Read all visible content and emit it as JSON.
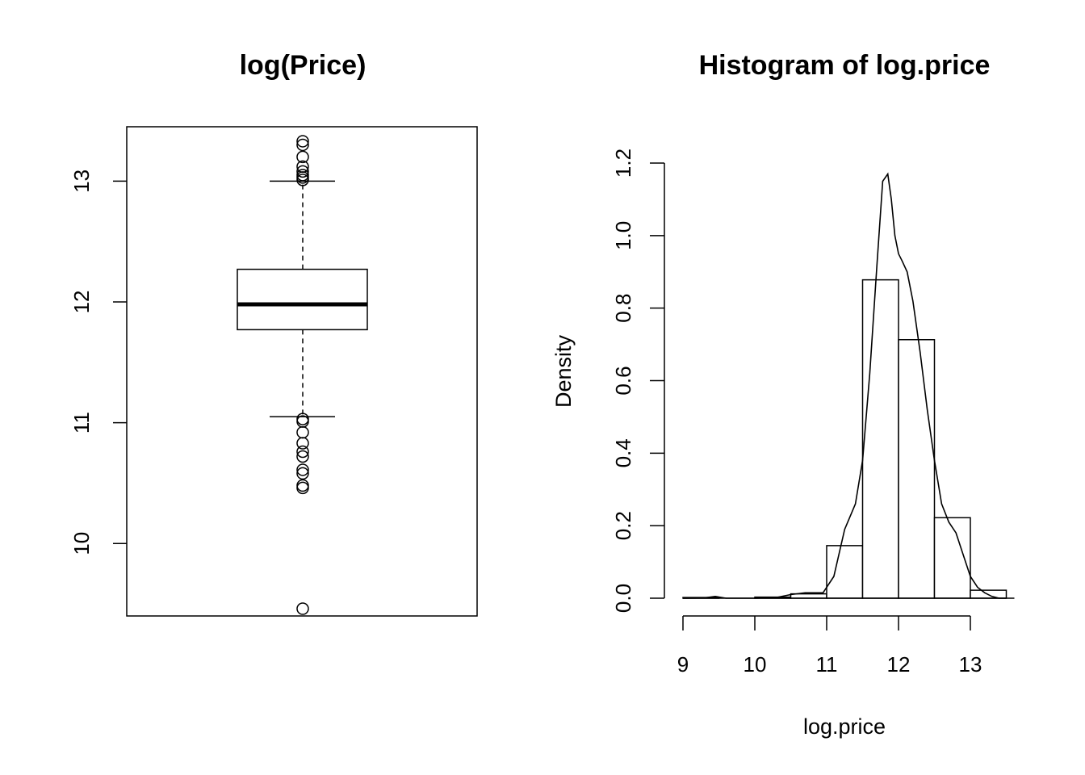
{
  "chart_data": [
    {
      "type": "boxplot",
      "title": "log(Price)",
      "xlabel": "",
      "ylabel": "",
      "ylim": [
        9.4,
        13.45
      ],
      "yticks": [
        10,
        11,
        12,
        13
      ],
      "grid": false,
      "stats": {
        "lower_whisker": 11.05,
        "q1": 11.77,
        "median": 11.98,
        "q3": 12.27,
        "upper_whisker": 13.0
      },
      "outliers": [
        13.33,
        13.3,
        13.2,
        13.12,
        13.08,
        13.05,
        13.03,
        13.01,
        11.03,
        11.01,
        10.92,
        10.83,
        10.76,
        10.72,
        10.61,
        10.58,
        10.48,
        10.46,
        9.46
      ]
    },
    {
      "type": "histogram",
      "title": "Histogram of log.price",
      "xlabel": "log.price",
      "ylabel": "Density",
      "xlim": [
        9,
        13.5
      ],
      "ylim": [
        0,
        1.2
      ],
      "xticks": [
        9,
        10,
        11,
        12,
        13
      ],
      "yticks": [
        0.0,
        0.2,
        0.4,
        0.6,
        0.8,
        1.0,
        1.2
      ],
      "ytick_labels": [
        "0.0",
        "0.2",
        "0.4",
        "0.6",
        "0.8",
        "1.0",
        "1.2"
      ],
      "grid": false,
      "bins": [
        {
          "x0": 9.0,
          "x1": 9.5,
          "density": 0.002
        },
        {
          "x0": 9.5,
          "x1": 10.0,
          "density": 0.0
        },
        {
          "x0": 10.0,
          "x1": 10.5,
          "density": 0.003
        },
        {
          "x0": 10.5,
          "x1": 11.0,
          "density": 0.012
        },
        {
          "x0": 11.0,
          "x1": 11.5,
          "density": 0.145
        },
        {
          "x0": 11.5,
          "x1": 12.0,
          "density": 0.878
        },
        {
          "x0": 12.0,
          "x1": 12.5,
          "density": 0.713
        },
        {
          "x0": 12.5,
          "x1": 13.0,
          "density": 0.222
        },
        {
          "x0": 13.0,
          "x1": 13.5,
          "density": 0.022
        }
      ],
      "density_curve": {
        "x": [
          9.0,
          9.3,
          9.45,
          9.6,
          10.0,
          10.3,
          10.5,
          10.7,
          10.95,
          11.1,
          11.25,
          11.4,
          11.5,
          11.6,
          11.7,
          11.78,
          11.85,
          11.9,
          11.95,
          12.0,
          12.05,
          12.12,
          12.2,
          12.3,
          12.4,
          12.5,
          12.6,
          12.7,
          12.8,
          12.9,
          13.0,
          13.1,
          13.2,
          13.3,
          13.4,
          13.5
        ],
        "y": [
          0.0,
          0.001,
          0.005,
          0.0,
          0.0,
          0.002,
          0.01,
          0.015,
          0.015,
          0.06,
          0.19,
          0.26,
          0.38,
          0.62,
          0.92,
          1.15,
          1.17,
          1.1,
          1.0,
          0.95,
          0.93,
          0.9,
          0.82,
          0.68,
          0.52,
          0.38,
          0.26,
          0.21,
          0.18,
          0.12,
          0.06,
          0.03,
          0.015,
          0.005,
          0.0,
          0.0
        ]
      }
    }
  ]
}
